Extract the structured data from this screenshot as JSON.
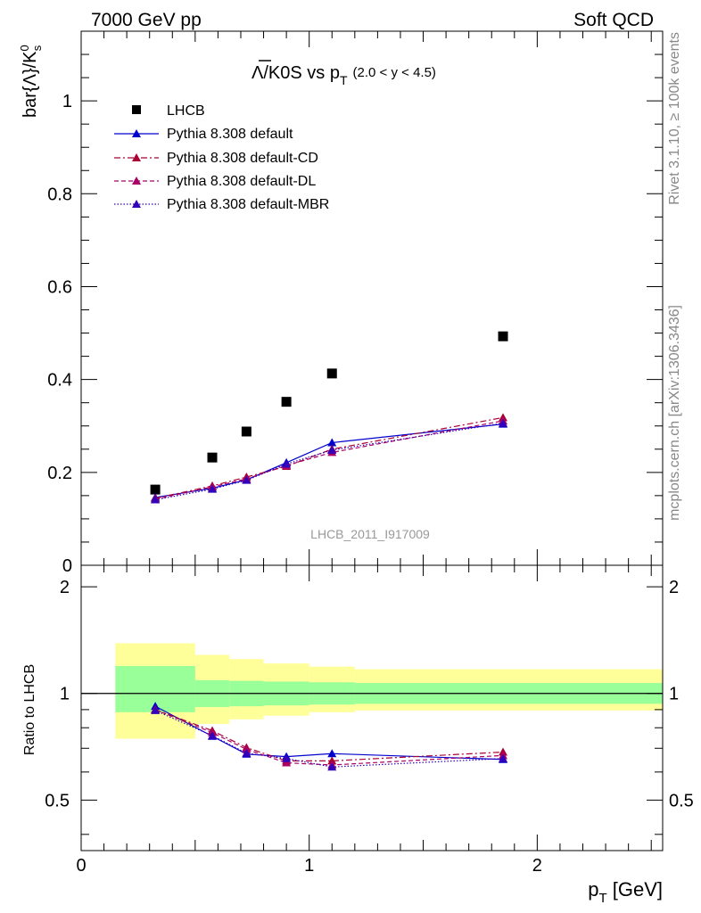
{
  "header": {
    "left": "7000 GeV pp",
    "right": "Soft QCD"
  },
  "side_labels": {
    "rivet": "Rivet 3.1.10, ≥ 100k events",
    "mcplots": "mcplots.cern.ch [arXiv:1306.3436]"
  },
  "colors": {
    "data": "#000000",
    "default": "#0000cc",
    "cd": "#aa0033",
    "dl": "#aa0066",
    "mbr": "#3300bb",
    "band_inner": "#99ff99",
    "band_outer": "#ffff99"
  },
  "chart_data": [
    {
      "type": "scatter",
      "title": "Λ/K0S vs p_T (2.0 < y < 4.5)",
      "title_parts": {
        "lambda": "Λ",
        "rest": "/K0S vs p",
        "sub": "T",
        "range": "(2.0 < y < 4.5)"
      },
      "analysis_id": "LHCB_2011_I917009",
      "ylabel": {
        "main": "bar{Λ}/K",
        "sup": "0",
        "sub": "s"
      },
      "xlim": [
        0,
        2.55
      ],
      "ylim": [
        0,
        1.15
      ],
      "yticks": [
        0,
        0.2,
        0.4,
        0.6,
        0.8,
        1
      ],
      "ytick_labels": [
        "0",
        "0.2",
        "0.4",
        "0.6",
        "0.8",
        "1"
      ],
      "x": [
        0.325,
        0.575,
        0.725,
        0.9,
        1.1,
        1.85
      ],
      "series": [
        {
          "key": "data",
          "name": "LHCB",
          "style": "square",
          "values": [
            0.163,
            0.232,
            0.288,
            0.352,
            0.413,
            0.493
          ]
        },
        {
          "key": "default",
          "name": "Pythia 8.308 default",
          "style": "solid",
          "values": [
            0.146,
            0.166,
            0.184,
            0.221,
            0.264,
            0.304
          ]
        },
        {
          "key": "cd",
          "name": "Pythia 8.308 default-CD",
          "style": "dashdot",
          "values": [
            0.144,
            0.171,
            0.19,
            0.213,
            0.25,
            0.318
          ]
        },
        {
          "key": "dl",
          "name": "Pythia 8.308 default-DL",
          "style": "dashed",
          "values": [
            0.142,
            0.169,
            0.186,
            0.215,
            0.243,
            0.311
          ]
        },
        {
          "key": "mbr",
          "name": "Pythia 8.308 default-MBR",
          "style": "dotted",
          "values": [
            0.141,
            0.164,
            0.183,
            0.218,
            0.248,
            0.306
          ]
        }
      ]
    },
    {
      "type": "line",
      "ylabel": "Ratio to LHCB",
      "xlabel": {
        "main": "p",
        "sub": "T",
        "unit": " [GeV]"
      },
      "xlim": [
        0,
        2.55
      ],
      "ylim": [
        0.36,
        2.3
      ],
      "xticks": [
        0,
        1,
        2
      ],
      "xtick_labels": [
        "0",
        "1",
        "2"
      ],
      "yticks": [
        0.5,
        1,
        2
      ],
      "ytick_labels": [
        "0.5",
        "1",
        "2"
      ],
      "bands": {
        "edges": [
          0.15,
          0.5,
          0.65,
          0.8,
          1.0,
          1.2,
          2.55
        ],
        "inner": [
          [
            0.885,
            1.195
          ],
          [
            0.915,
            1.09
          ],
          [
            0.92,
            1.085
          ],
          [
            0.925,
            1.08
          ],
          [
            0.93,
            1.075
          ],
          [
            0.935,
            1.07
          ]
        ],
        "outer": [
          [
            0.745,
            1.385
          ],
          [
            0.82,
            1.285
          ],
          [
            0.845,
            1.25
          ],
          [
            0.865,
            1.215
          ],
          [
            0.885,
            1.19
          ],
          [
            0.895,
            1.17
          ]
        ]
      },
      "x": [
        0.325,
        0.575,
        0.725,
        0.9,
        1.1,
        1.85
      ],
      "series": [
        {
          "key": "default",
          "values": [
            0.92,
            0.757,
            0.674,
            0.663,
            0.676,
            0.651
          ]
        },
        {
          "key": "cd",
          "values": [
            0.9,
            0.785,
            0.703,
            0.645,
            0.645,
            0.683
          ]
        },
        {
          "key": "dl",
          "values": [
            0.9,
            0.775,
            0.695,
            0.637,
            0.628,
            0.668
          ]
        },
        {
          "key": "mbr",
          "values": [
            0.895,
            0.76,
            0.678,
            0.655,
            0.62,
            0.655
          ]
        }
      ]
    }
  ]
}
